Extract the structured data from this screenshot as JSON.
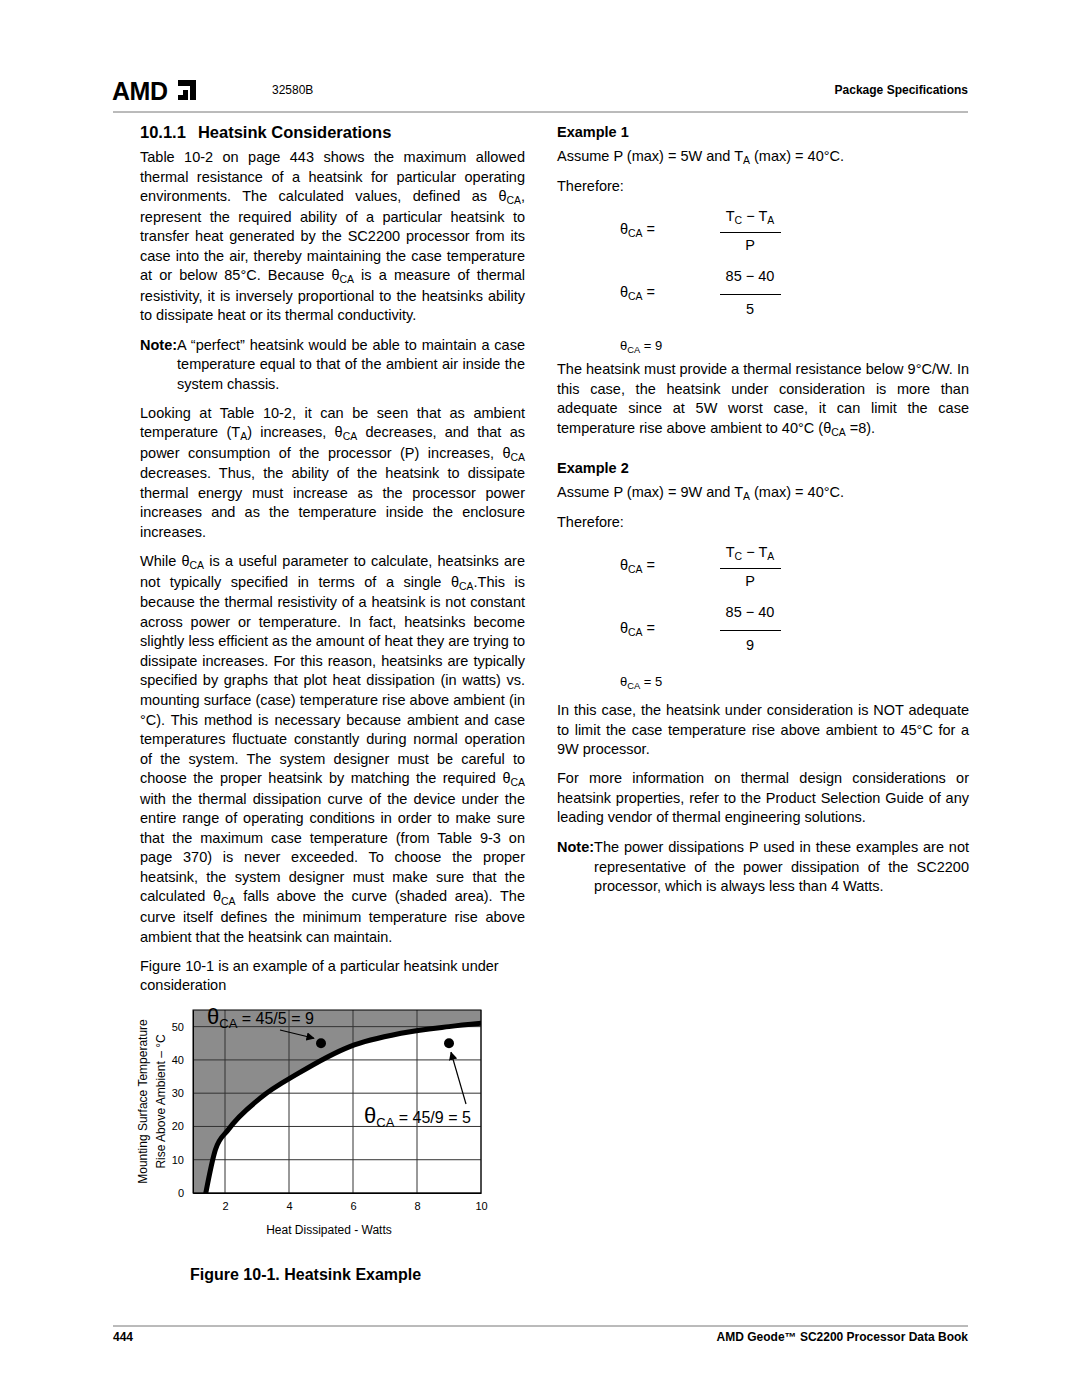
{
  "header": {
    "logo": "AMD",
    "doc_id": "32580B",
    "section": "Package Specifications"
  },
  "section": {
    "number": "10.1.1",
    "title": "Heatsink Considerations"
  },
  "left_column": {
    "p1": [
      "Table 10-2 on page 443 shows the maximum allowed thermal resistance of a heatsink for particular operating environments. The calculated values, defined as θ",
      {
        "sub": "CA"
      },
      ", represent the required ability of a particular heatsink to transfer heat generated by the SC2200 processor from its case into the air, thereby maintaining the case temperature at or below 85°C. Because θ",
      {
        "sub": "CA"
      },
      " is a measure of thermal resistivity, it is inversely proportional to the heatsinks ability to dissipate heat or its thermal conductivity."
    ],
    "note": {
      "label": "Note:",
      "runs": [
        "A “perfect” heatsink would be able to maintain a case temperature equal to that of the ambient air inside the system chassis."
      ]
    },
    "p2": [
      "Looking at Table 10-2, it can be seen that as ambient temperature (T",
      {
        "sub": "A"
      },
      ") increases, θ",
      {
        "sub": "CA"
      },
      " decreases, and that as power consumption of the processor (P) increases, θ",
      {
        "sub": "CA"
      },
      " decreases. Thus, the ability of the heatsink to dissipate thermal energy must increase as the processor power increases and as the temperature inside the enclosure increases."
    ],
    "p3": [
      "While θ",
      {
        "sub": "CA"
      },
      " is a useful parameter to calculate, heatsinks are not typically specified in terms of a single θ",
      {
        "sub": "CA"
      },
      ".This is because the thermal resistivity of a heatsink is not constant across power or temperature. In fact, heatsinks become slightly less efficient as the amount of heat they are trying to dissipate increases. For this reason, heatsinks are typically specified by graphs that plot heat dissipation (in watts) vs. mounting surface (case) temperature rise above ambient (in °C). This method is necessary because ambient and case temperatures fluctuate constantly during normal operation of the system. The system designer must be careful to choose the proper heatsink by matching the required θ",
      {
        "sub": "CA"
      },
      " with the thermal dissipation curve of the device under the entire range of operating conditions in order to make sure that the maximum case temperature (from Table 9-3 on page 370) is never exceeded. To choose the proper heatsink, the system designer must make sure that the calculated θ",
      {
        "sub": "CA"
      },
      " falls above the curve (shaded area). The curve itself defines the minimum temperature rise above ambient that the heatsink can maintain."
    ],
    "p4": [
      "Figure 10-1 is an example of a particular heatsink under consideration"
    ]
  },
  "chart_data": {
    "type": "line",
    "x": [
      1.4,
      1.7,
      2.1,
      3.1,
      4.3,
      5.9,
      7.5,
      9.0,
      10
    ],
    "values": [
      0,
      13,
      19,
      28.5,
      36,
      44,
      48,
      50,
      51
    ],
    "color": "#000000",
    "xlabel": "Heat Dissipated - Watts",
    "ylabel": [
      "Mounting Surface Temperature",
      "Rise Above Ambient – °C"
    ],
    "xlim": [
      1,
      10
    ],
    "ylim": [
      0,
      55
    ],
    "xticks": [
      2,
      4,
      6,
      8,
      10
    ],
    "yticks": [
      0,
      10,
      20,
      30,
      40,
      50
    ],
    "grid": true,
    "points": [
      {
        "x": 5,
        "y": 45,
        "label": [
          "θ",
          {
            "sub": "CA"
          },
          " = 45/5 = 9"
        ]
      },
      {
        "x": 9,
        "y": 45,
        "label": [
          "θ",
          {
            "sub": "CA"
          },
          " = 45/9 = 5"
        ]
      }
    ]
  },
  "figure_caption": "Figure 10-1.  Heatsink Example",
  "right_column": {
    "example1": {
      "title": "Example 1",
      "assume": [
        "Assume P (max) = 5W and T",
        {
          "sub": "A"
        },
        " (max) = 40°C."
      ],
      "therefore": "Therefore:",
      "eq1": {
        "lhs": [
          "θ",
          {
            "sub": "CA"
          },
          " ="
        ],
        "num": [
          "T",
          {
            "sub": "C"
          },
          " − T",
          {
            "sub": "A"
          }
        ],
        "den": [
          "P"
        ]
      },
      "eq2": {
        "lhs": [
          "θ",
          {
            "sub": "CA"
          },
          " ="
        ],
        "num": [
          "85 − 40"
        ],
        "den": [
          "5"
        ]
      },
      "result": [
        "θ",
        {
          "sub": "CA"
        },
        " = 9"
      ],
      "text": [
        "The heatsink must provide a thermal resistance below 9°C/W. In this case, the heatsink under consideration is more than adequate since at 5W worst case, it can limit the case temperature rise above ambient to 40°C (θ",
        {
          "sub": "CA"
        },
        " =8)."
      ]
    },
    "example2": {
      "title": "Example 2",
      "assume": [
        "Assume P (max) = 9W and T",
        {
          "sub": "A"
        },
        " (max) = 40°C."
      ],
      "therefore": "Therefore:",
      "eq1": {
        "lhs": [
          "θ",
          {
            "sub": "CA"
          },
          " ="
        ],
        "num": [
          "T",
          {
            "sub": "C"
          },
          " − T",
          {
            "sub": "A"
          }
        ],
        "den": [
          "P"
        ]
      },
      "eq2": {
        "lhs": [
          "θ",
          {
            "sub": "CA"
          },
          " ="
        ],
        "num": [
          "85 − 40"
        ],
        "den": [
          "9"
        ]
      },
      "result": [
        "θ",
        {
          "sub": "CA"
        },
        " = 5"
      ],
      "text": [
        "In this case, the heatsink under consideration is NOT adequate to limit the case temperature rise above ambient to 45°C for a 9W processor."
      ]
    },
    "more": [
      "For more information on thermal design considerations or heatsink properties, refer to the Product Selection Guide of any leading vendor of thermal engineering solutions."
    ],
    "note": {
      "label": "Note:",
      "runs": [
        "The power dissipations P used in these examples are not representative of the power dissipation of the SC2200 processor, which is always less than 4 Watts."
      ]
    }
  },
  "footer": {
    "page": "444",
    "book": "AMD Geode™ SC2200 Processor Data Book"
  }
}
